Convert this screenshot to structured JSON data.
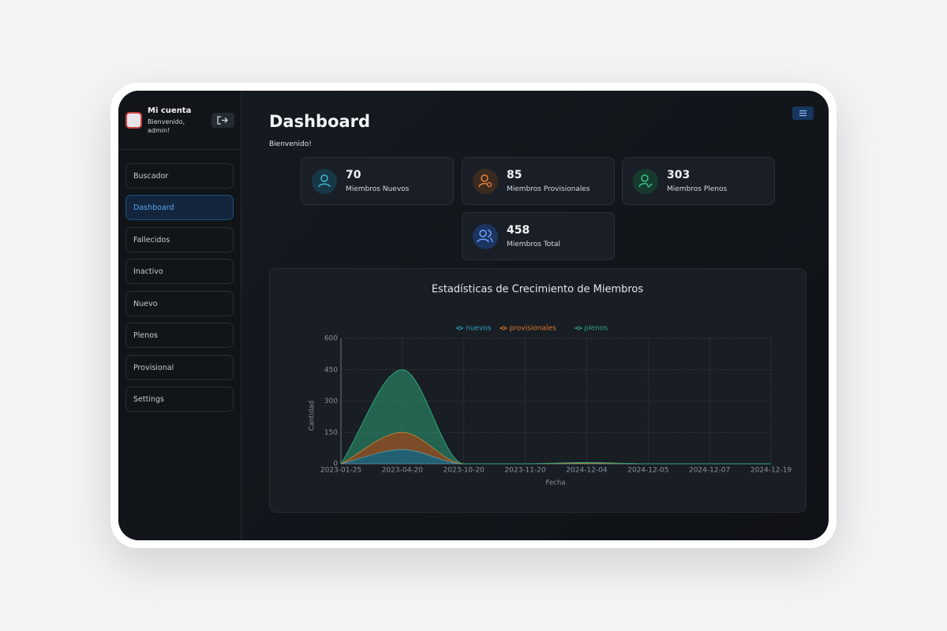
{
  "sidebar": {
    "account_title": "Mi cuenta",
    "welcome": "Bienvenido, admin!",
    "nav": [
      "Buscador",
      "Dashboard",
      "Fallecidos",
      "Inactivo",
      "Nuevo",
      "Plenos",
      "Provisional",
      "Settings"
    ]
  },
  "header": {
    "title": "Dashboard",
    "subtitle": "Bienvenido!"
  },
  "cards": [
    {
      "value": 70,
      "label": "Miembros Nuevos"
    },
    {
      "value": 85,
      "label": "Miembros Provisionales"
    },
    {
      "value": 303,
      "label": "Miembros Plenos"
    },
    {
      "value": 458,
      "label": "Miembros Total"
    }
  ],
  "chart_data": {
    "type": "stacked-area",
    "title": "Estadísticas de Crecimiento de Miembros",
    "x_label": "Fecha",
    "y_label": "Cantidad",
    "categories": [
      "2023-01-25",
      "2023-04-20",
      "2023-10-20",
      "2023-11-20",
      "2024-12-04",
      "2024-12-05",
      "2024-12-07",
      "2024-12-19"
    ],
    "series": [
      {
        "name": "nuevos",
        "color": "#2a9fc0",
        "values": [
          0,
          68,
          0,
          0,
          2,
          0,
          0,
          0
        ]
      },
      {
        "name": "provisionales",
        "color": "#e0772a",
        "values": [
          0,
          82,
          0,
          0,
          1,
          0,
          0,
          0
        ]
      },
      {
        "name": "plenos",
        "color": "#2ea87a",
        "values": [
          0,
          300,
          0,
          0,
          3,
          0,
          0,
          0
        ]
      }
    ],
    "ylim": [
      0,
      600
    ],
    "yticks": [
      0,
      150,
      300,
      450,
      600
    ],
    "grid": true,
    "legend": "top"
  }
}
